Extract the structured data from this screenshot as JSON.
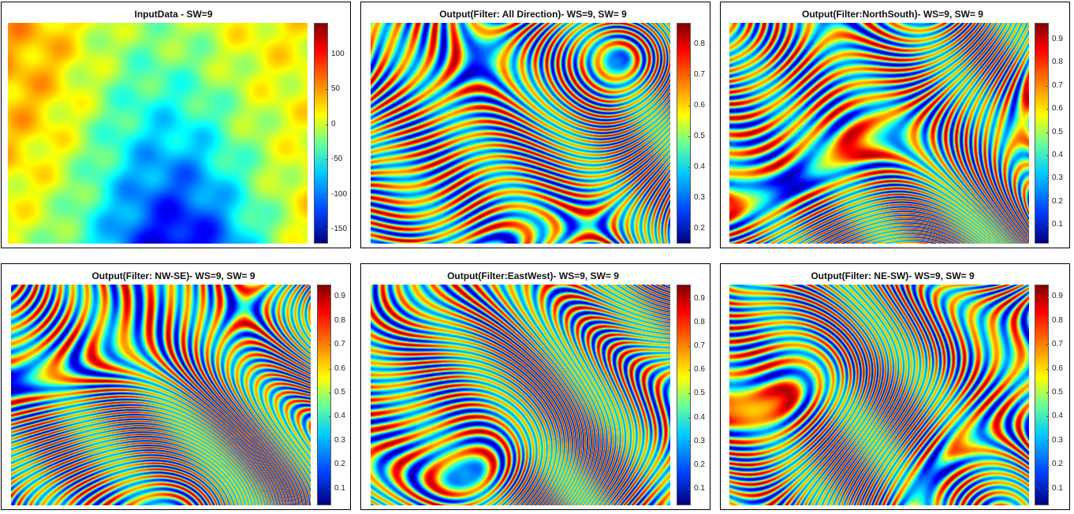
{
  "chart_data": [
    {
      "type": "heatmap",
      "title": "InputData - SW=9",
      "colorbar": {
        "range": [
          -170,
          145
        ],
        "ticks": [
          100,
          50,
          0,
          -50,
          -100,
          -150
        ],
        "tick_labels": [
          "100",
          "50",
          "0",
          "-50",
          "-100",
          "-150"
        ]
      },
      "colormap": "jet",
      "pattern": "smooth"
    },
    {
      "type": "heatmap",
      "title": "Output(Filter: All Direction)- WS=9, SW= 9",
      "colorbar": {
        "range": [
          0.15,
          0.87
        ],
        "ticks": [
          0.8,
          0.7,
          0.6,
          0.5,
          0.4,
          0.3,
          0.2
        ],
        "tick_labels": [
          "0.8",
          "0.7",
          "0.6",
          "0.5",
          "0.4",
          "0.3",
          "0.2"
        ]
      },
      "colormap": "jet",
      "pattern": "stripes"
    },
    {
      "type": "heatmap",
      "title": "Output(Filter:NorthSouth)- WS=9, SW= 9",
      "colorbar": {
        "range": [
          0.02,
          0.97
        ],
        "ticks": [
          0.9,
          0.8,
          0.7,
          0.6,
          0.5,
          0.4,
          0.3,
          0.2,
          0.1
        ],
        "tick_labels": [
          "0.9",
          "0.8",
          "0.7",
          "0.6",
          "0.5",
          "0.4",
          "0.3",
          "0.2",
          "0.1"
        ]
      },
      "colormap": "jet",
      "pattern": "stripes"
    },
    {
      "type": "heatmap",
      "title": "Output(Filter: NW-SE)- WS=9, SW= 9",
      "colorbar": {
        "range": [
          0.03,
          0.95
        ],
        "ticks": [
          0.9,
          0.8,
          0.7,
          0.6,
          0.5,
          0.4,
          0.3,
          0.2,
          0.1
        ],
        "tick_labels": [
          "0.9",
          "0.8",
          "0.7",
          "0.6",
          "0.5",
          "0.4",
          "0.3",
          "0.2",
          "0.1"
        ]
      },
      "colormap": "jet",
      "pattern": "stripes"
    },
    {
      "type": "heatmap",
      "title": "Output(Filter:EastWest)- WS=9, SW= 9",
      "colorbar": {
        "range": [
          0.03,
          0.96
        ],
        "ticks": [
          0.9,
          0.8,
          0.7,
          0.6,
          0.5,
          0.4,
          0.3,
          0.2,
          0.1
        ],
        "tick_labels": [
          "0.9",
          "0.8",
          "0.7",
          "0.6",
          "0.5",
          "0.4",
          "0.3",
          "0.2",
          "0.1"
        ]
      },
      "colormap": "jet",
      "pattern": "stripes"
    },
    {
      "type": "heatmap",
      "title": "Output(Filter: NE-SW)- WS=9, SW= 9",
      "colorbar": {
        "range": [
          0.03,
          0.95
        ],
        "ticks": [
          0.9,
          0.8,
          0.7,
          0.6,
          0.5,
          0.4,
          0.3,
          0.2,
          0.1
        ],
        "tick_labels": [
          "0.9",
          "0.8",
          "0.7",
          "0.6",
          "0.5",
          "0.4",
          "0.3",
          "0.2",
          "0.1"
        ]
      },
      "colormap": "jet",
      "pattern": "stripes"
    }
  ]
}
